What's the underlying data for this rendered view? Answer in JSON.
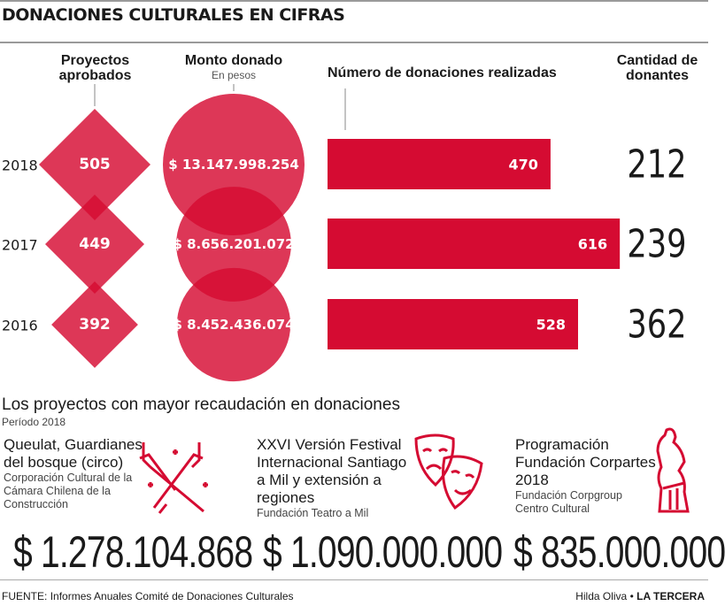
{
  "title": "DONACIONES CULTURALES EN CIFRAS",
  "headers": {
    "proyectos": "Proyectos aprobados",
    "monto": "Monto donado",
    "monto_sub": "En pesos",
    "donaciones": "Número de donaciones realizadas",
    "donantes": "Cantidad de donantes"
  },
  "colors": {
    "accent": "#d50b32",
    "overlap": "#a0001c"
  },
  "chart_data": {
    "type": "table",
    "categories": [
      "2018",
      "2017",
      "2016"
    ],
    "series": [
      {
        "name": "Proyectos aprobados",
        "values": [
          505,
          449,
          392
        ],
        "labels": [
          "505",
          "449",
          "392"
        ]
      },
      {
        "name": "Monto donado",
        "values": [
          13147998254,
          8656201072,
          8452436074
        ],
        "labels": [
          "$ 13.147.998.254",
          "$ 8.656.201.072",
          "$ 8.452.436.074"
        ]
      },
      {
        "name": "Número de donaciones realizadas",
        "values": [
          470,
          616,
          528
        ],
        "labels": [
          "470",
          "616",
          "528"
        ]
      },
      {
        "name": "Cantidad de donantes",
        "values": [
          212,
          239,
          362
        ],
        "labels": [
          "212",
          "239",
          "362"
        ]
      }
    ]
  },
  "projects": {
    "title": "Los proyectos con mayor recaudación en donaciones",
    "subtitle": "Período 2018",
    "items": [
      {
        "name": "Queulat, Guardianes del bosque (circo)",
        "org": "Corporación Cultural de la Cámara Chilena de la Construcción",
        "amount": "$ 1.278.104.868",
        "icon": "circus-hands-icon"
      },
      {
        "name": "XXVI Versión Festival Internacional Santiago a Mil y extensión a regiones",
        "org": "Fundación Teatro a Mil",
        "amount": "$ 1.090.000.000",
        "icon": "theater-masks-icon"
      },
      {
        "name": "Programación Fundación Corpartes 2018",
        "org": "Fundación Corpgroup Centro Cultural",
        "amount": "$ 835.000.000",
        "icon": "sculpture-icon"
      }
    ]
  },
  "footer": {
    "source_label": "FUENTE:",
    "source": "Informes Anuales Comité de Donaciones Culturales",
    "author": "Hilda Oliva",
    "brand": "LA TERCERA"
  }
}
